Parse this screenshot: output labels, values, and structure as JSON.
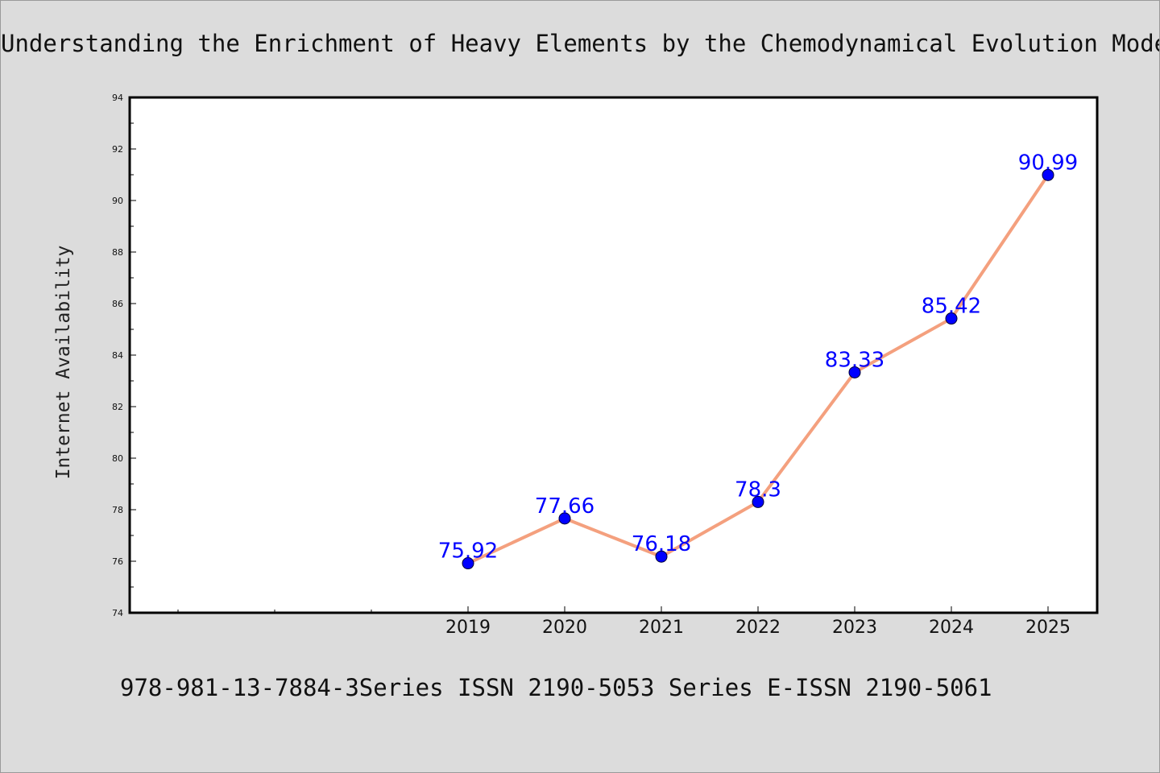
{
  "header": {
    "title": "Understanding the Enrichment of Heavy Elements by the Chemodynamical Evolution Models"
  },
  "footer": {
    "text": "978-981-13-7884-3Series ISSN 2190-5053 Series E-ISSN 2190-5061"
  },
  "chart_data": {
    "type": "line",
    "title": "Understanding the Enrichment of Heavy Elements by the Chemodynamical Evolution Models",
    "xlabel": "",
    "ylabel": "Internet Availability",
    "categories": [
      "2019",
      "2020",
      "2021",
      "2022",
      "2023",
      "2024",
      "2025"
    ],
    "series": [
      {
        "values": [
          75.92,
          77.66,
          76.18,
          78.3,
          83.33,
          85.42,
          90.99
        ],
        "data_labels": [
          "75.92",
          "77.66",
          "76.18",
          "78.3",
          "83.33",
          "85.42",
          "90.99"
        ]
      }
    ],
    "ylim": [
      74,
      94
    ],
    "yticks": [
      74,
      76,
      78,
      80,
      82,
      84,
      86,
      88,
      90,
      92,
      94
    ],
    "grid": false,
    "legend": "none",
    "colors": {
      "line": "#f4a07e",
      "marker": "#0000ff",
      "data_label": "#0000ff",
      "background": "#dcdcdc",
      "plot_area": "#ffffff"
    }
  }
}
